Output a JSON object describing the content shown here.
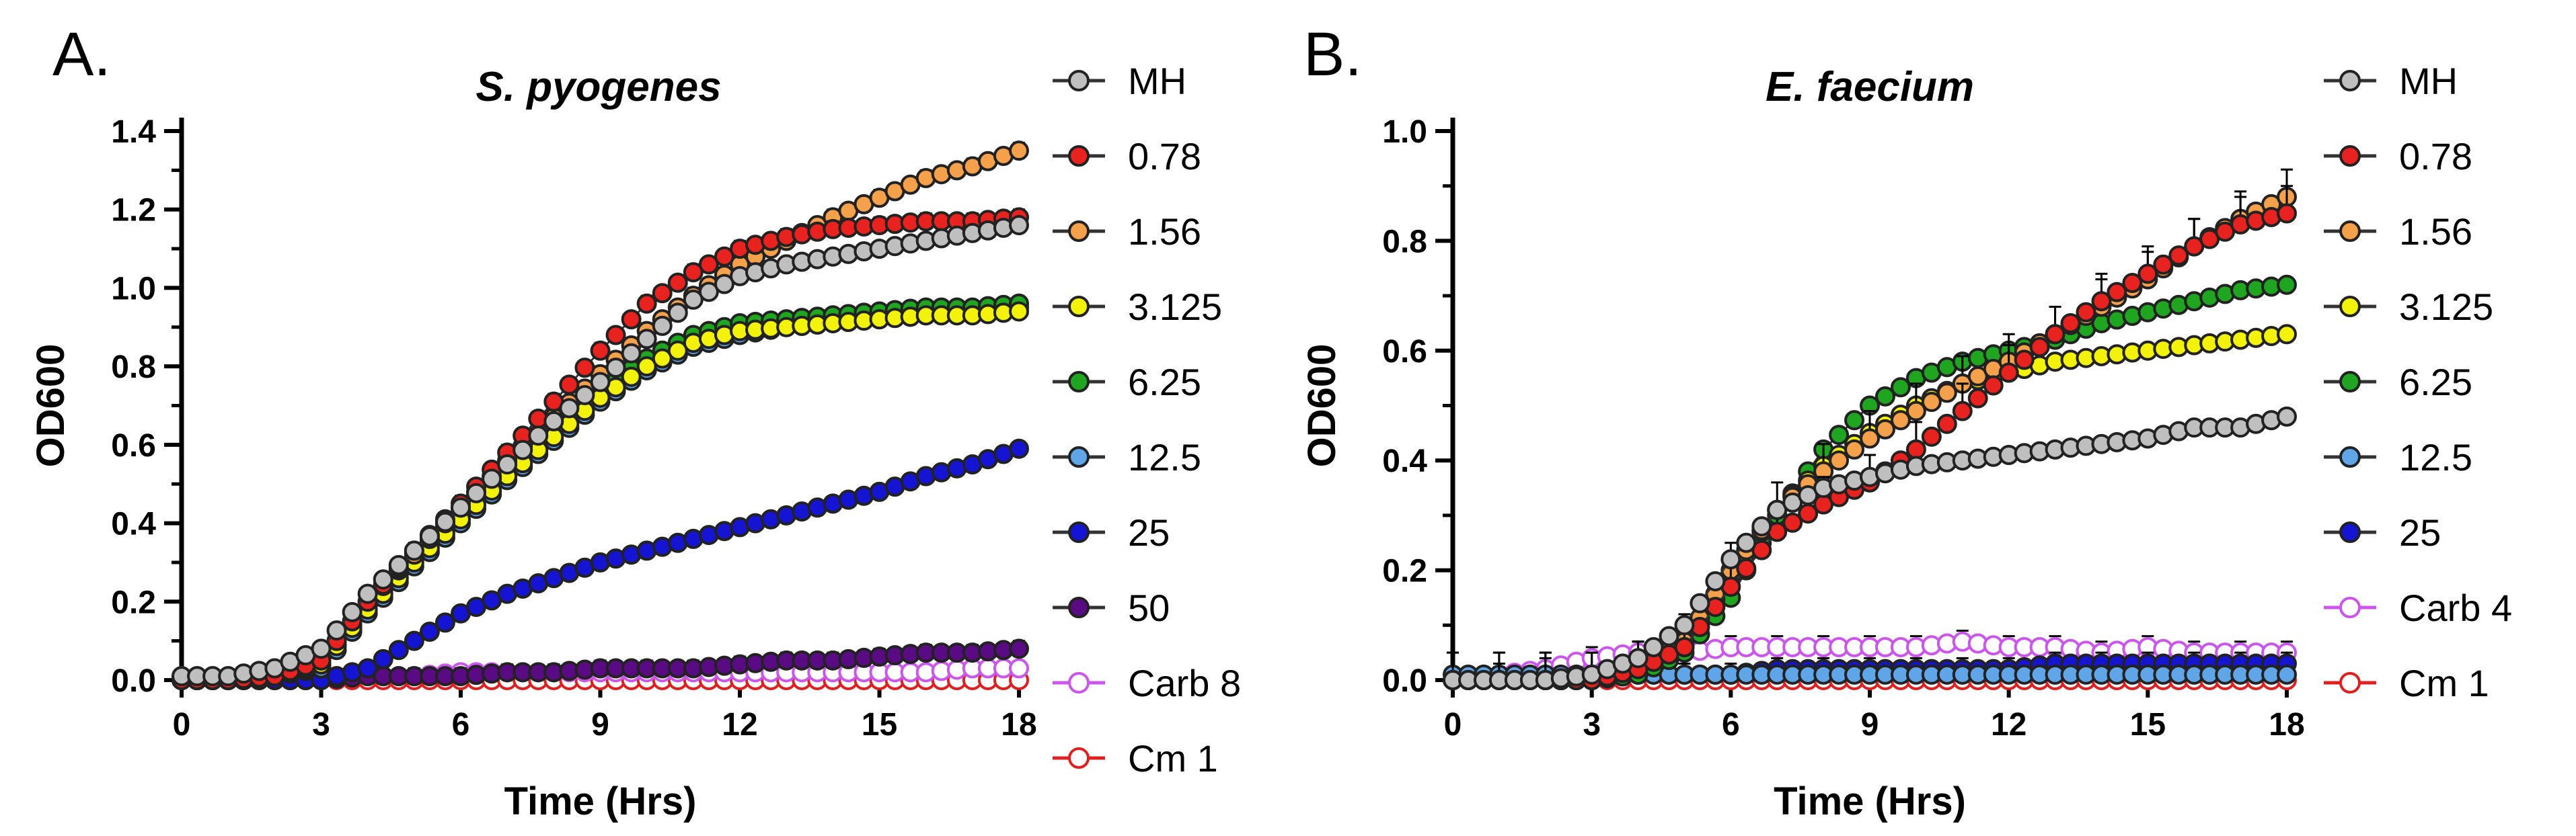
{
  "figure": {
    "panel_letters": [
      "A.",
      "B."
    ]
  },
  "chart_data": [
    {
      "type": "line",
      "panel": "A.",
      "title": "S. pyogenes",
      "xlabel": "Time (Hrs)",
      "ylabel": "OD600",
      "xlim": [
        0,
        18
      ],
      "ylim": [
        0,
        1.4
      ],
      "xticks": [
        0,
        3,
        6,
        9,
        12,
        15,
        18
      ],
      "yticks": [
        0.0,
        0.2,
        0.4,
        0.6,
        0.8,
        1.0,
        1.2,
        1.4
      ],
      "ytick_labels": [
        "0.0",
        "0.2",
        "0.4",
        "0.6",
        "0.8",
        "1.0",
        "1.2",
        "1.4"
      ],
      "x": [
        0,
        1,
        2,
        3,
        4,
        5,
        6,
        7,
        8,
        9,
        10,
        11,
        12,
        13,
        14,
        15,
        16,
        17,
        18
      ],
      "series": [
        {
          "name": "MH",
          "color": "#bfbfbf",
          "filled": true,
          "error": 0.015,
          "values": [
            0.01,
            0.01,
            0.03,
            0.08,
            0.22,
            0.33,
            0.44,
            0.55,
            0.66,
            0.76,
            0.87,
            0.97,
            1.03,
            1.06,
            1.08,
            1.1,
            1.12,
            1.14,
            1.16
          ]
        },
        {
          "name": "0.78",
          "color": "#e8221e",
          "filled": true,
          "error": 0.02,
          "values": [
            0.0,
            0.0,
            0.01,
            0.05,
            0.2,
            0.33,
            0.45,
            0.58,
            0.71,
            0.84,
            0.96,
            1.04,
            1.1,
            1.13,
            1.15,
            1.16,
            1.17,
            1.17,
            1.18
          ]
        },
        {
          "name": "1.56",
          "color": "#f5a04a",
          "filled": true,
          "error": 0.02,
          "values": [
            0.0,
            0.0,
            0.01,
            0.05,
            0.2,
            0.32,
            0.44,
            0.56,
            0.67,
            0.78,
            0.89,
            0.98,
            1.06,
            1.12,
            1.18,
            1.23,
            1.28,
            1.31,
            1.35
          ]
        },
        {
          "name": "3.125",
          "color": "#f2f20a",
          "filled": true,
          "error": 0.015,
          "values": [
            0.0,
            0.0,
            0.01,
            0.04,
            0.18,
            0.3,
            0.41,
            0.52,
            0.62,
            0.72,
            0.8,
            0.86,
            0.89,
            0.9,
            0.91,
            0.92,
            0.93,
            0.93,
            0.94
          ]
        },
        {
          "name": "6.25",
          "color": "#1fa51f",
          "filled": true,
          "error": 0.015,
          "values": [
            0.0,
            0.0,
            0.01,
            0.04,
            0.19,
            0.31,
            0.43,
            0.54,
            0.64,
            0.74,
            0.82,
            0.88,
            0.91,
            0.92,
            0.93,
            0.94,
            0.95,
            0.95,
            0.96
          ]
        },
        {
          "name": "12.5",
          "color": "#5fa5e8",
          "filled": true,
          "error": 0.015,
          "values": [
            0.0,
            0.0,
            0.01,
            0.03,
            0.17,
            0.29,
            0.4,
            0.51,
            0.61,
            0.71,
            0.79,
            0.85,
            0.88,
            0.9,
            0.91,
            0.92,
            0.93,
            0.94,
            0.95
          ]
        },
        {
          "name": "25",
          "color": "#1414d2",
          "filled": true,
          "error": 0.01,
          "values": [
            0.0,
            0.0,
            0.0,
            0.0,
            0.03,
            0.1,
            0.17,
            0.22,
            0.26,
            0.3,
            0.33,
            0.36,
            0.39,
            0.42,
            0.45,
            0.48,
            0.52,
            0.55,
            0.59
          ]
        },
        {
          "name": "50",
          "color": "#5a0a82",
          "filled": true,
          "error": 0.02,
          "values": [
            0.0,
            0.0,
            0.0,
            0.0,
            0.01,
            0.01,
            0.01,
            0.02,
            0.02,
            0.03,
            0.03,
            0.03,
            0.04,
            0.05,
            0.05,
            0.06,
            0.07,
            0.07,
            0.08
          ]
        },
        {
          "name": "Carb 8",
          "color": "#cc55ee",
          "filled": false,
          "error": 0.01,
          "values": [
            0.01,
            0.01,
            0.01,
            0.01,
            0.01,
            0.01,
            0.02,
            0.02,
            0.02,
            0.02,
            0.02,
            0.02,
            0.02,
            0.02,
            0.02,
            0.02,
            0.02,
            0.03,
            0.03
          ]
        },
        {
          "name": "Cm 1",
          "color": "#e02020",
          "filled": false,
          "error": 0.005,
          "values": [
            0.0,
            0.0,
            0.0,
            0.0,
            0.0,
            0.0,
            0.0,
            0.0,
            0.0,
            0.0,
            0.0,
            0.0,
            0.0,
            0.0,
            0.0,
            0.0,
            0.0,
            0.0,
            0.0
          ]
        }
      ]
    },
    {
      "type": "line",
      "panel": "B.",
      "title": "E. faecium",
      "xlabel": "Time (Hrs)",
      "ylabel": "OD600",
      "xlim": [
        0,
        18
      ],
      "ylim": [
        0,
        1.0
      ],
      "xticks": [
        0,
        3,
        6,
        9,
        12,
        15,
        18
      ],
      "yticks": [
        0.0,
        0.2,
        0.4,
        0.6,
        0.8,
        1.0
      ],
      "ytick_labels": [
        "0.0",
        "0.2",
        "0.4",
        "0.6",
        "0.8",
        "1.0"
      ],
      "x": [
        0,
        1,
        2,
        3,
        4,
        5,
        6,
        7,
        8,
        9,
        10,
        11,
        12,
        13,
        14,
        15,
        16,
        17,
        18
      ],
      "series": [
        {
          "name": "MH",
          "color": "#bfbfbf",
          "filled": true,
          "error": 0.01,
          "values": [
            0.0,
            0.0,
            0.0,
            0.01,
            0.04,
            0.1,
            0.22,
            0.31,
            0.35,
            0.37,
            0.39,
            0.4,
            0.41,
            0.42,
            0.43,
            0.44,
            0.46,
            0.46,
            0.48
          ]
        },
        {
          "name": "0.78",
          "color": "#e8221e",
          "filled": true,
          "error": 0.05,
          "values": [
            0.0,
            0.0,
            0.0,
            0.0,
            0.02,
            0.06,
            0.17,
            0.27,
            0.32,
            0.36,
            0.42,
            0.49,
            0.56,
            0.63,
            0.69,
            0.74,
            0.79,
            0.83,
            0.85
          ]
        },
        {
          "name": "1.56",
          "color": "#f5a04a",
          "filled": true,
          "error": 0.05,
          "values": [
            0.0,
            0.0,
            0.0,
            0.0,
            0.02,
            0.07,
            0.2,
            0.31,
            0.38,
            0.44,
            0.49,
            0.54,
            0.58,
            0.63,
            0.68,
            0.73,
            0.79,
            0.84,
            0.88
          ]
        },
        {
          "name": "3.125",
          "color": "#f2f20a",
          "filled": true,
          "error": 0.01,
          "values": [
            0.0,
            0.0,
            0.0,
            0.0,
            0.02,
            0.06,
            0.19,
            0.31,
            0.39,
            0.45,
            0.5,
            0.54,
            0.56,
            0.58,
            0.59,
            0.6,
            0.61,
            0.62,
            0.63
          ]
        },
        {
          "name": "6.25",
          "color": "#1fa51f",
          "filled": true,
          "error": 0.01,
          "values": [
            0.0,
            0.0,
            0.0,
            0.0,
            0.01,
            0.05,
            0.15,
            0.3,
            0.42,
            0.5,
            0.55,
            0.58,
            0.6,
            0.62,
            0.65,
            0.67,
            0.69,
            0.71,
            0.72
          ]
        },
        {
          "name": "12.5",
          "color": "#5fa5e8",
          "filled": true,
          "error": 0.01,
          "values": [
            0.01,
            0.01,
            0.01,
            0.01,
            0.01,
            0.01,
            0.01,
            0.01,
            0.01,
            0.01,
            0.01,
            0.01,
            0.01,
            0.01,
            0.01,
            0.01,
            0.01,
            0.01,
            0.01
          ]
        },
        {
          "name": "25",
          "color": "#1414d2",
          "filled": true,
          "error": 0.02,
          "values": [
            0.0,
            0.0,
            0.0,
            0.0,
            0.01,
            0.01,
            0.01,
            0.02,
            0.02,
            0.02,
            0.02,
            0.02,
            0.02,
            0.03,
            0.03,
            0.03,
            0.03,
            0.03,
            0.03
          ]
        },
        {
          "name": "Carb 4",
          "color": "#cc55ee",
          "filled": false,
          "error": 0.02,
          "values": [
            0.0,
            0.01,
            0.02,
            0.04,
            0.05,
            0.05,
            0.06,
            0.06,
            0.06,
            0.06,
            0.06,
            0.07,
            0.06,
            0.06,
            0.05,
            0.06,
            0.05,
            0.05,
            0.05
          ]
        },
        {
          "name": "Cm 1",
          "color": "#e02020",
          "filled": false,
          "error": 0.005,
          "values": [
            0.0,
            0.0,
            0.0,
            0.0,
            0.0,
            0.0,
            0.0,
            0.0,
            0.0,
            0.0,
            0.0,
            0.0,
            0.0,
            0.0,
            0.0,
            0.0,
            0.0,
            0.0,
            0.0
          ]
        }
      ]
    }
  ]
}
